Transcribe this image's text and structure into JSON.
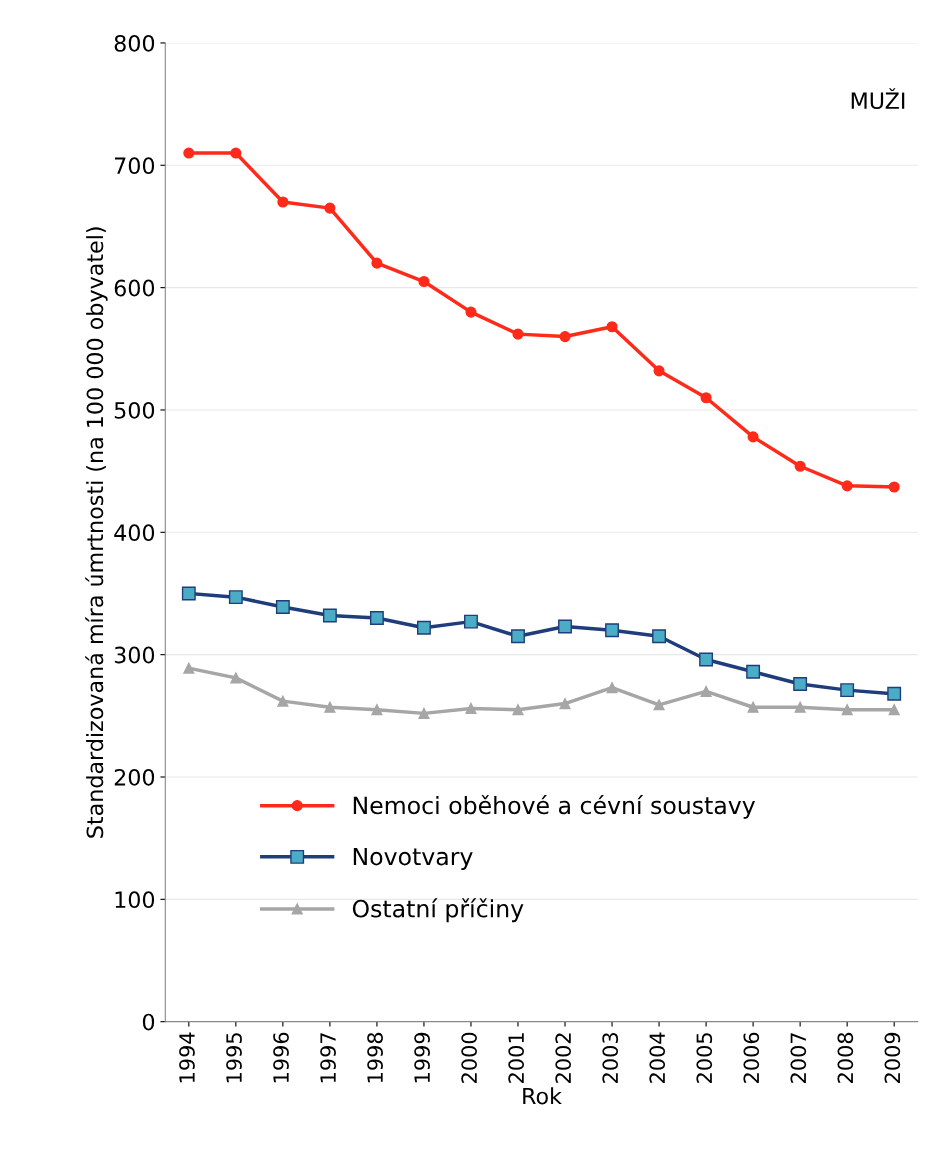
{
  "chart_data": {
    "type": "line",
    "ylabel": "Standardizovaná míra úmrtnosti (na 100 000 obyvatel)",
    "xlabel": "Rok",
    "annotations": [
      "MUŽI"
    ],
    "categories": [
      "1994",
      "1995",
      "1996",
      "1997",
      "1998",
      "1999",
      "2000",
      "2001",
      "2002",
      "2003",
      "2004",
      "2005",
      "2006",
      "2007",
      "2008",
      "2009"
    ],
    "series": [
      {
        "name": "Nemoci oběhové a cévní soustavy",
        "color": "#ff2a1a",
        "marker": "circle",
        "values": [
          710,
          710,
          670,
          665,
          620,
          605,
          580,
          562,
          560,
          568,
          532,
          510,
          478,
          454,
          438,
          437
        ]
      },
      {
        "name": "Novotvary",
        "color": "#1f3d7a",
        "marker": "square",
        "values": [
          350,
          347,
          339,
          332,
          330,
          322,
          327,
          315,
          323,
          320,
          315,
          296,
          286,
          276,
          271,
          268
        ]
      },
      {
        "name": "Ostatní příčiny",
        "color": "#a6a6a6",
        "marker": "triangle",
        "values": [
          289,
          281,
          262,
          257,
          255,
          252,
          256,
          255,
          260,
          273,
          259,
          270,
          257,
          257,
          255,
          255
        ]
      }
    ],
    "ylim": [
      0,
      800
    ],
    "yticks": [
      0,
      100,
      200,
      300,
      400,
      500,
      600,
      700,
      800
    ],
    "grid": "y",
    "legend": "bottom left"
  }
}
